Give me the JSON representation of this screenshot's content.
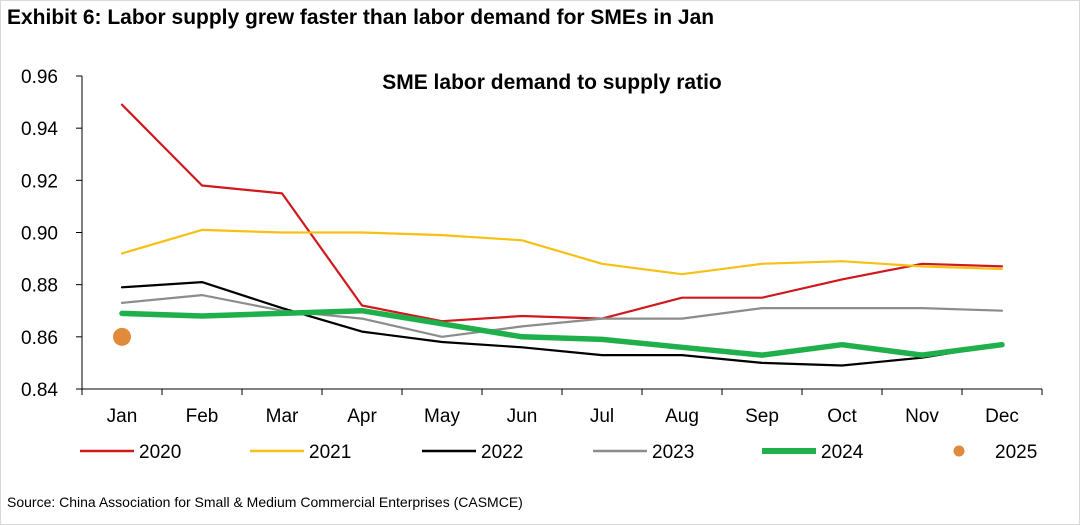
{
  "exhibit_title": "Exhibit 6: Labor supply grew faster than labor demand for SMEs in Jan",
  "source": "Source: China Association for Small & Medium Commercial Enterprises (CASMCE)",
  "chart_data": {
    "type": "line",
    "title": "SME labor demand to supply ratio",
    "xlabel": "",
    "ylabel": "",
    "categories": [
      "Jan",
      "Feb",
      "Mar",
      "Apr",
      "May",
      "Jun",
      "Jul",
      "Aug",
      "Sep",
      "Oct",
      "Nov",
      "Dec"
    ],
    "ylim": [
      0.84,
      0.96
    ],
    "yticks": [
      "0.84",
      "0.86",
      "0.88",
      "0.90",
      "0.92",
      "0.94",
      "0.96"
    ],
    "grid": false,
    "legend_placement": "bottom",
    "series": [
      {
        "name": "2020",
        "color": "#d0191c",
        "style": "line",
        "values": [
          0.949,
          0.918,
          0.915,
          0.872,
          0.866,
          0.868,
          0.867,
          0.875,
          0.875,
          0.882,
          0.888,
          0.887
        ]
      },
      {
        "name": "2021",
        "color": "#f7c014",
        "style": "line",
        "values": [
          0.892,
          0.901,
          0.9,
          0.9,
          0.899,
          0.897,
          0.888,
          0.884,
          0.888,
          0.889,
          0.887,
          0.886
        ]
      },
      {
        "name": "2022",
        "color": "#000000",
        "style": "line",
        "values": [
          0.879,
          0.881,
          0.871,
          0.862,
          0.858,
          0.856,
          0.853,
          0.853,
          0.85,
          0.849,
          0.852,
          0.857
        ]
      },
      {
        "name": "2023",
        "color": "#8c8c8c",
        "style": "line",
        "values": [
          0.873,
          0.876,
          0.87,
          0.867,
          0.86,
          0.864,
          0.867,
          0.867,
          0.871,
          0.871,
          0.871,
          0.87
        ]
      },
      {
        "name": "2024",
        "color": "#1fb04b",
        "style": "thick-line",
        "values": [
          0.869,
          0.868,
          0.869,
          0.87,
          0.865,
          0.86,
          0.859,
          0.856,
          0.853,
          0.857,
          0.853,
          0.857
        ]
      },
      {
        "name": "2025",
        "color": "#e08a3c",
        "style": "marker",
        "values": [
          0.86,
          null,
          null,
          null,
          null,
          null,
          null,
          null,
          null,
          null,
          null,
          null
        ]
      }
    ]
  }
}
